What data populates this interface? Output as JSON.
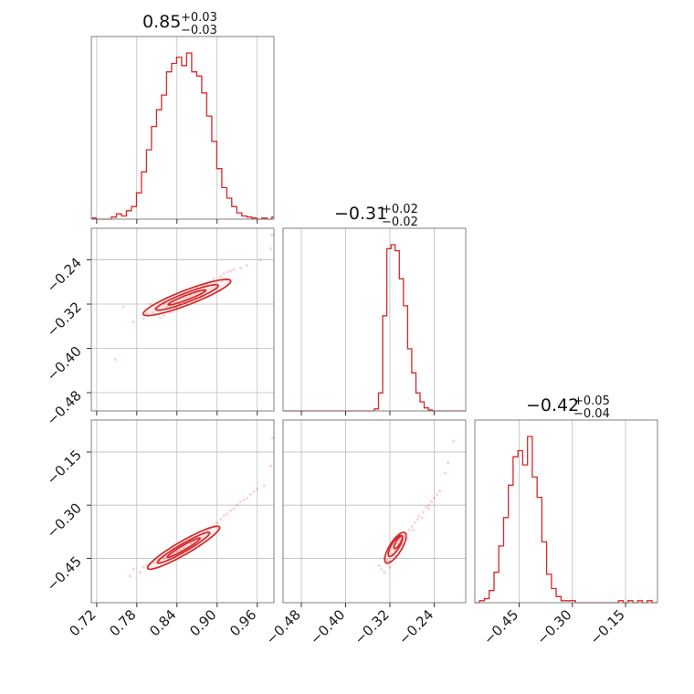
{
  "chart_data": {
    "type": "corner",
    "color": "#d62728",
    "parameters": [
      {
        "id": "p1",
        "title": {
          "median": "0.85",
          "plus": "+0.03",
          "minus": "−0.03"
        },
        "range": [
          0.712,
          0.985
        ],
        "ticks": [
          0.72,
          0.78,
          0.84,
          0.9,
          0.96
        ],
        "tick_labels": [
          "0.72",
          "0.78",
          "0.84",
          "0.90",
          "0.96"
        ],
        "hist_bins": [
          0.712,
          0.7195,
          0.727,
          0.7345,
          0.742,
          0.7495,
          0.757,
          0.7645,
          0.772,
          0.7795,
          0.787,
          0.7945,
          0.802,
          0.8095,
          0.817,
          0.8245,
          0.832,
          0.8395,
          0.847,
          0.8545,
          0.862,
          0.8695,
          0.877,
          0.8845,
          0.892,
          0.8995,
          0.907,
          0.9145,
          0.922,
          0.9295,
          0.937,
          0.9445,
          0.952,
          0.9595,
          0.967,
          0.9745,
          0.982,
          0.985
        ],
        "hist_counts": [
          1,
          0,
          0,
          0,
          2,
          5,
          3,
          8,
          12,
          25,
          45,
          66,
          88,
          104,
          118,
          140,
          148,
          154,
          146,
          158,
          140,
          136,
          120,
          98,
          74,
          48,
          30,
          20,
          12,
          6,
          3,
          2,
          1,
          0,
          1,
          0,
          2
        ]
      },
      {
        "id": "p2",
        "title": {
          "median": "−0.31",
          "plus": "+0.02",
          "minus": "−0.02"
        },
        "range": [
          -0.513,
          -0.183
        ],
        "ticks": [
          -0.48,
          -0.4,
          -0.32,
          -0.24
        ],
        "tick_labels": [
          "−0.48",
          "−0.40",
          "−0.32",
          "−0.24"
        ],
        "hist_bins": [
          -0.513,
          -0.5055,
          -0.498,
          -0.4905,
          -0.483,
          -0.4755,
          -0.468,
          -0.4605,
          -0.453,
          -0.4455,
          -0.438,
          -0.4305,
          -0.423,
          -0.4155,
          -0.408,
          -0.4005,
          -0.393,
          -0.3855,
          -0.378,
          -0.3705,
          -0.363,
          -0.3555,
          -0.348,
          -0.3405,
          -0.333,
          -0.3255,
          -0.318,
          -0.3105,
          -0.303,
          -0.2955,
          -0.288,
          -0.2805,
          -0.273,
          -0.2655,
          -0.258,
          -0.2505,
          -0.243,
          -0.2355,
          -0.228,
          -0.2205,
          -0.213,
          -0.2055,
          -0.198,
          -0.1905,
          -0.183
        ],
        "hist_counts": [
          0,
          0,
          0,
          0,
          0,
          0,
          0,
          0,
          0,
          0,
          0,
          0,
          0,
          0,
          0,
          0,
          0,
          0,
          0,
          0,
          0,
          0,
          2,
          18,
          95,
          162,
          166,
          160,
          132,
          105,
          62,
          38,
          18,
          9,
          3,
          1,
          0,
          0,
          0,
          0,
          0,
          0,
          0,
          0
        ]
      },
      {
        "id": "p3",
        "title": {
          "median": "−0.42",
          "plus": "+0.05",
          "minus": "−0.04"
        },
        "range": [
          -0.575,
          -0.06
        ],
        "ticks": [
          -0.45,
          -0.3,
          -0.15
        ],
        "tick_labels": [
          "−0.45",
          "−0.30",
          "−0.15"
        ],
        "hist_bins": [
          -0.575,
          -0.5615,
          -0.548,
          -0.5345,
          -0.521,
          -0.5075,
          -0.494,
          -0.4805,
          -0.467,
          -0.4535,
          -0.44,
          -0.4265,
          -0.413,
          -0.3995,
          -0.386,
          -0.3725,
          -0.359,
          -0.3455,
          -0.332,
          -0.3185,
          -0.305,
          -0.2915,
          -0.278,
          -0.2645,
          -0.251,
          -0.2375,
          -0.224,
          -0.2105,
          -0.197,
          -0.1835,
          -0.17,
          -0.1565,
          -0.143,
          -0.1295,
          -0.116,
          -0.1025,
          -0.089,
          -0.0755,
          -0.06
        ],
        "hist_counts": [
          0,
          1,
          2,
          6,
          15,
          28,
          42,
          58,
          72,
          75,
          68,
          82,
          62,
          52,
          30,
          14,
          7,
          3,
          1,
          1,
          1,
          0,
          0,
          0,
          0,
          0,
          0,
          0,
          0,
          0,
          1,
          0,
          1,
          0,
          1,
          0,
          1,
          0
        ]
      }
    ],
    "pairs": [
      {
        "x": "p1",
        "y": "p2",
        "contours": [
          {
            "center": [
              0.855,
              -0.308
            ],
            "axes": [
              0.03,
              0.0035
            ],
            "angle_deg": 21
          },
          {
            "center": [
              0.855,
              -0.308
            ],
            "axes": [
              0.05,
              0.007
            ],
            "angle_deg": 21
          },
          {
            "center": [
              0.855,
              -0.308
            ],
            "axes": [
              0.07,
              0.011
            ],
            "angle_deg": 21
          }
        ],
        "points": [
          [
            0.76,
            -0.325
          ],
          [
            0.775,
            -0.352
          ],
          [
            0.79,
            -0.346
          ],
          [
            0.805,
            -0.335
          ],
          [
            0.812,
            -0.33
          ],
          [
            0.8,
            -0.32
          ],
          [
            0.82,
            -0.34
          ],
          [
            0.83,
            -0.335
          ],
          [
            0.835,
            -0.332
          ],
          [
            0.84,
            -0.328
          ],
          [
            0.845,
            -0.32
          ],
          [
            0.85,
            -0.305
          ],
          [
            0.86,
            -0.3
          ],
          [
            0.865,
            -0.298
          ],
          [
            0.87,
            -0.295
          ],
          [
            0.88,
            -0.288
          ],
          [
            0.885,
            -0.285
          ],
          [
            0.89,
            -0.28
          ],
          [
            0.895,
            -0.275
          ],
          [
            0.905,
            -0.27
          ],
          [
            0.91,
            -0.265
          ],
          [
            0.915,
            -0.262
          ],
          [
            0.92,
            -0.26
          ],
          [
            0.925,
            -0.258
          ],
          [
            0.935,
            -0.255
          ],
          [
            0.945,
            -0.25
          ],
          [
            0.965,
            -0.24
          ],
          [
            0.98,
            -0.22
          ],
          [
            0.982,
            -0.195
          ],
          [
            0.795,
            -0.338
          ],
          [
            0.808,
            -0.327
          ],
          [
            0.822,
            -0.318
          ],
          [
            0.838,
            -0.325
          ],
          [
            0.852,
            -0.315
          ],
          [
            0.868,
            -0.31
          ],
          [
            0.876,
            -0.302
          ],
          [
            0.882,
            -0.296
          ],
          [
            0.898,
            -0.283
          ],
          [
            0.748,
            -0.42
          ],
          [
            0.9,
            -0.295
          ],
          [
            0.815,
            -0.345
          ],
          [
            0.825,
            -0.326
          ],
          [
            0.87,
            -0.29
          ],
          [
            0.908,
            -0.278
          ]
        ]
      },
      {
        "x": "p1",
        "y": "p3",
        "contours": [
          {
            "center": [
              0.85,
              -0.42
            ],
            "axes": [
              0.028,
              0.0035
            ],
            "angle_deg": 30
          },
          {
            "center": [
              0.85,
              -0.42
            ],
            "axes": [
              0.045,
              0.006
            ],
            "angle_deg": 30
          },
          {
            "center": [
              0.85,
              -0.42
            ],
            "axes": [
              0.062,
              0.01
            ],
            "angle_deg": 30
          }
        ],
        "points": [
          [
            0.77,
            -0.5
          ],
          [
            0.775,
            -0.48
          ],
          [
            0.785,
            -0.49
          ],
          [
            0.79,
            -0.475
          ],
          [
            0.8,
            -0.465
          ],
          [
            0.81,
            -0.455
          ],
          [
            0.815,
            -0.46
          ],
          [
            0.82,
            -0.45
          ],
          [
            0.83,
            -0.44
          ],
          [
            0.835,
            -0.435
          ],
          [
            0.84,
            -0.43
          ],
          [
            0.85,
            -0.42
          ],
          [
            0.86,
            -0.405
          ],
          [
            0.865,
            -0.4
          ],
          [
            0.87,
            -0.39
          ],
          [
            0.88,
            -0.38
          ],
          [
            0.885,
            -0.37
          ],
          [
            0.89,
            -0.365
          ],
          [
            0.9,
            -0.35
          ],
          [
            0.905,
            -0.34
          ],
          [
            0.91,
            -0.33
          ],
          [
            0.92,
            -0.315
          ],
          [
            0.93,
            -0.3
          ],
          [
            0.935,
            -0.29
          ],
          [
            0.945,
            -0.28
          ],
          [
            0.96,
            -0.255
          ],
          [
            0.97,
            -0.245
          ],
          [
            0.98,
            -0.19
          ],
          [
            0.983,
            -0.11
          ],
          [
            0.795,
            -0.47
          ],
          [
            0.805,
            -0.462
          ],
          [
            0.825,
            -0.445
          ],
          [
            0.845,
            -0.428
          ],
          [
            0.875,
            -0.392
          ],
          [
            0.895,
            -0.36
          ],
          [
            0.915,
            -0.325
          ],
          [
            0.925,
            -0.31
          ],
          [
            0.94,
            -0.285
          ],
          [
            0.95,
            -0.27
          ],
          [
            0.955,
            -0.262
          ]
        ]
      },
      {
        "x": "p2",
        "y": "p3",
        "contours": [
          {
            "center": [
              -0.305,
              -0.405
            ],
            "axes": [
              0.013,
              0.004
            ],
            "angle_deg": 58
          },
          {
            "center": [
              -0.31,
              -0.415
            ],
            "axes": [
              0.022,
              0.007
            ],
            "angle_deg": 58
          },
          {
            "center": [
              -0.31,
              -0.42
            ],
            "axes": [
              0.032,
              0.011
            ],
            "angle_deg": 58
          }
        ],
        "points": [
          [
            -0.335,
            -0.48
          ],
          [
            -0.33,
            -0.49
          ],
          [
            -0.34,
            -0.47
          ],
          [
            -0.325,
            -0.465
          ],
          [
            -0.33,
            -0.45
          ],
          [
            -0.32,
            -0.46
          ],
          [
            -0.315,
            -0.44
          ],
          [
            -0.31,
            -0.43
          ],
          [
            -0.305,
            -0.42
          ],
          [
            -0.3,
            -0.4
          ],
          [
            -0.295,
            -0.39
          ],
          [
            -0.29,
            -0.38
          ],
          [
            -0.285,
            -0.37
          ],
          [
            -0.28,
            -0.36
          ],
          [
            -0.275,
            -0.35
          ],
          [
            -0.27,
            -0.34
          ],
          [
            -0.26,
            -0.32
          ],
          [
            -0.25,
            -0.3
          ],
          [
            -0.245,
            -0.29
          ],
          [
            -0.24,
            -0.28
          ],
          [
            -0.235,
            -0.27
          ],
          [
            -0.25,
            -0.31
          ],
          [
            -0.255,
            -0.305
          ],
          [
            -0.23,
            -0.26
          ],
          [
            -0.22,
            -0.21
          ],
          [
            -0.215,
            -0.18
          ],
          [
            -0.205,
            -0.12
          ],
          [
            -0.32,
            -0.475
          ],
          [
            -0.325,
            -0.455
          ],
          [
            -0.298,
            -0.41
          ],
          [
            -0.288,
            -0.395
          ],
          [
            -0.278,
            -0.37
          ],
          [
            -0.268,
            -0.33
          ],
          [
            -0.262,
            -0.335
          ],
          [
            -0.31,
            -0.445
          ]
        ]
      }
    ]
  }
}
